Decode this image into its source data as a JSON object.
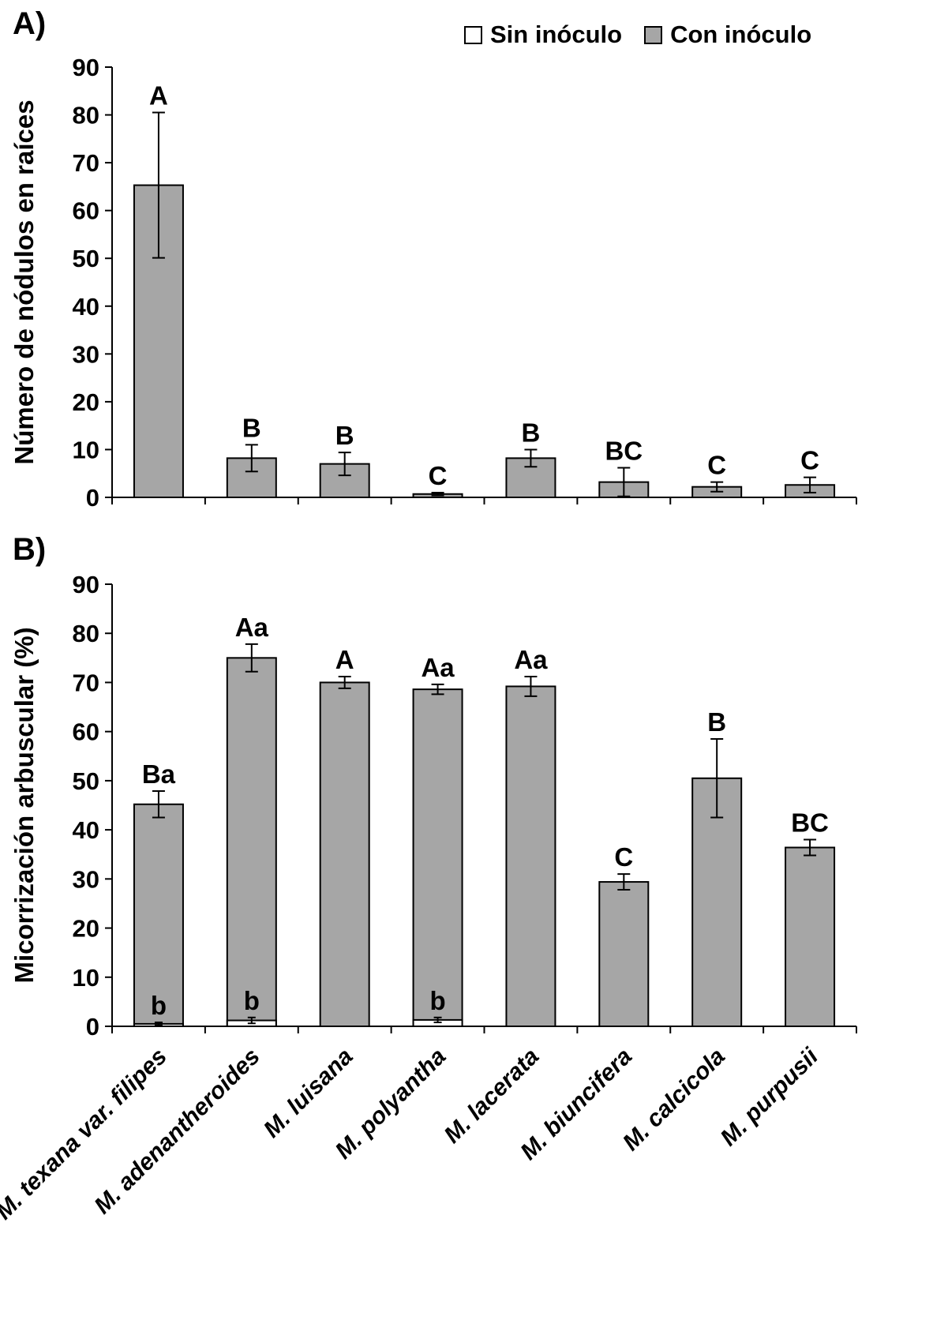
{
  "page": {
    "panel_a_label": "A)",
    "panel_b_label": "B)"
  },
  "legend": {
    "items": [
      {
        "label": "Sin inóculo",
        "color": "#FFFFFF"
      },
      {
        "label": "Con inóculo",
        "color": "#A6A6A6"
      }
    ]
  },
  "chart_data": [
    {
      "type": "bar",
      "panel": "A",
      "ylabel": "Número de nódulos en raíces",
      "ylim": [
        0,
        90
      ],
      "ytick_step": 10,
      "grid": false,
      "legend_position": "top-right",
      "categories": [
        "M. texana var. filipes",
        "M. adenantheroides",
        "M. luisana",
        "M. polyantha",
        "M. lacerata",
        "M. biuncifera",
        "M. calcicola",
        "M. purpusii"
      ],
      "series": [
        {
          "name": "Con inóculo",
          "color": "#A6A6A6",
          "values": [
            65.3,
            8.2,
            7.0,
            0.7,
            8.2,
            3.2,
            2.2,
            2.6
          ],
          "errors": [
            15.2,
            2.8,
            2.4,
            0.3,
            1.8,
            3.0,
            1.0,
            1.6
          ],
          "letters": [
            "A",
            "B",
            "B",
            "C",
            "B",
            "BC",
            "C",
            "C"
          ]
        }
      ],
      "show_category_labels": false
    },
    {
      "type": "bar",
      "panel": "B",
      "ylabel": "Micorrización arbuscular (%)",
      "ylim": [
        0,
        90
      ],
      "ytick_step": 10,
      "grid": false,
      "categories": [
        "M. texana var. filipes",
        "M. adenantheroides",
        "M. luisana",
        "M. polyantha",
        "M. lacerata",
        "M. biuncifera",
        "M. calcicola",
        "M. purpusii"
      ],
      "series": [
        {
          "name": "Sin inóculo",
          "color": "#FFFFFF",
          "values": [
            0.5,
            1.2,
            0,
            1.3,
            0,
            0,
            0,
            0
          ],
          "errors": [
            0.3,
            0.6,
            0,
            0.5,
            0,
            0,
            0,
            0
          ],
          "letters": [
            "b",
            "b",
            "",
            "b",
            "",
            "",
            "",
            ""
          ]
        },
        {
          "name": "Con inóculo",
          "color": "#A6A6A6",
          "values": [
            45.2,
            75.0,
            70.0,
            68.6,
            69.2,
            29.4,
            50.5,
            36.4
          ],
          "errors": [
            2.7,
            2.8,
            1.2,
            1.0,
            2.0,
            1.6,
            8.0,
            1.6
          ],
          "letters": [
            "Ba",
            "Aa",
            "A",
            "Aa",
            "Aa",
            "C",
            "B",
            "BC"
          ]
        }
      ],
      "show_category_labels": true
    }
  ]
}
